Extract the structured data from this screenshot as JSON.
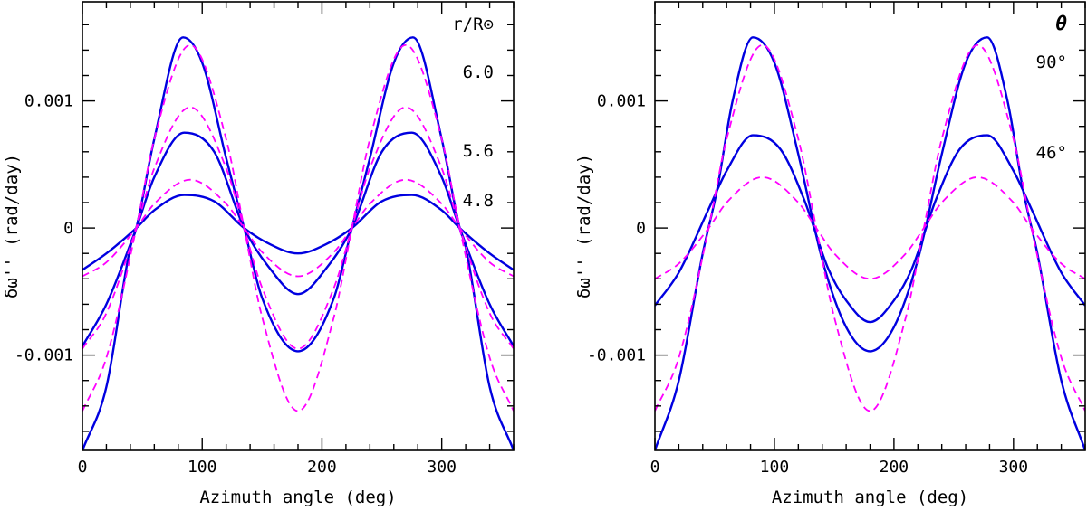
{
  "chart_data": [
    {
      "type": "line",
      "xlabel": "Azimuth angle  (deg)",
      "ylabel": "δω'' (rad/day)",
      "xlim": [
        0,
        360
      ],
      "ylim": [
        -0.00175,
        0.00178
      ],
      "xticks": [
        0,
        100,
        200,
        300
      ],
      "xtick_labels": [
        "0",
        "100",
        "200",
        "300"
      ],
      "yticks": [
        -0.001,
        0,
        0.001
      ],
      "ytick_labels": [
        "-0.001",
        "0",
        "0.001"
      ],
      "grid": false,
      "legend_title": "r/R⊙",
      "legend_entries": [
        "6.0",
        "5.6",
        "4.8"
      ],
      "colors": {
        "solid": "#0000e0",
        "dashed": "#ff00ff"
      },
      "series": [
        {
          "style": "solid",
          "x": [
            0,
            20,
            40,
            45,
            60,
            84,
            100,
            120,
            135,
            150,
            180,
            210,
            225,
            240,
            260,
            276,
            300,
            315,
            320,
            340,
            360
          ],
          "y": [
            -0.00175,
            -0.00125,
            -0.00015,
            0.0,
            0.0007,
            0.0015,
            0.0013,
            0.00055,
            0.0,
            -0.00055,
            -0.00097,
            -0.00055,
            0.0,
            0.00055,
            0.0013,
            0.0015,
            0.0007,
            0.0,
            -0.00015,
            -0.00125,
            -0.00175
          ]
        },
        {
          "style": "solid",
          "x": [
            0,
            20,
            45,
            60,
            85,
            110,
            135,
            155,
            180,
            205,
            225,
            250,
            275,
            300,
            315,
            340,
            360
          ],
          "y": [
            -0.00093,
            -0.0006,
            0.0,
            0.0004,
            0.00075,
            0.0006,
            0.0,
            -0.0003,
            -0.00052,
            -0.0003,
            0.0,
            0.0006,
            0.00075,
            0.0004,
            0.0,
            -0.0006,
            -0.00093
          ]
        },
        {
          "style": "solid",
          "x": [
            0,
            20,
            45,
            60,
            85,
            110,
            135,
            155,
            180,
            205,
            225,
            250,
            275,
            300,
            315,
            340,
            360
          ],
          "y": [
            -0.00033,
            -0.0002,
            0.0,
            0.00014,
            0.00026,
            0.00021,
            0.0,
            -0.00012,
            -0.0002,
            -0.00012,
            0.0,
            0.00021,
            0.00026,
            0.00014,
            0.0,
            -0.0002,
            -0.00033
          ]
        },
        {
          "style": "dashed",
          "x": [
            0,
            20,
            45,
            60,
            90,
            120,
            135,
            150,
            180,
            210,
            225,
            240,
            270,
            300,
            315,
            340,
            360
          ],
          "y": [
            -0.00144,
            -0.00102,
            0.0,
            0.0007,
            0.00144,
            0.0007,
            0.0,
            -0.0007,
            -0.00144,
            -0.0007,
            0.0,
            0.0007,
            0.00144,
            0.0007,
            0.0,
            -0.00102,
            -0.00144
          ]
        },
        {
          "style": "dashed",
          "x": [
            0,
            20,
            45,
            60,
            90,
            120,
            135,
            150,
            180,
            210,
            225,
            240,
            270,
            300,
            315,
            340,
            360
          ],
          "y": [
            -0.00095,
            -0.00067,
            0.0,
            0.00047,
            0.00095,
            0.00047,
            0.0,
            -0.00047,
            -0.00095,
            -0.00047,
            0.0,
            0.00047,
            0.00095,
            0.00047,
            0.0,
            -0.00067,
            -0.00095
          ]
        },
        {
          "style": "dashed",
          "x": [
            0,
            20,
            45,
            60,
            90,
            120,
            135,
            150,
            180,
            210,
            225,
            240,
            270,
            300,
            315,
            340,
            360
          ],
          "y": [
            -0.00038,
            -0.00027,
            0.0,
            0.00019,
            0.00038,
            0.00019,
            0.0,
            -0.00019,
            -0.00038,
            -0.00019,
            0.0,
            0.00019,
            0.00038,
            0.00019,
            0.0,
            -0.00027,
            -0.00038
          ]
        }
      ]
    },
    {
      "type": "line",
      "xlabel": "Azimuth angle  (deg)",
      "ylabel": "δω'' (rad/day)",
      "xlim": [
        0,
        360
      ],
      "ylim": [
        -0.00175,
        0.00178
      ],
      "xticks": [
        0,
        100,
        200,
        300
      ],
      "xtick_labels": [
        "0",
        "100",
        "200",
        "300"
      ],
      "yticks": [
        -0.001,
        0,
        0.001
      ],
      "ytick_labels": [
        "-0.001",
        "0",
        "0.001"
      ],
      "grid": false,
      "legend_title": "θ",
      "legend_entries": [
        "90°",
        "46°"
      ],
      "colors": {
        "solid": "#0000e0",
        "dashed": "#ff00ff"
      },
      "series": [
        {
          "style": "solid",
          "x": [
            0,
            20,
            40,
            52,
            65,
            82,
            100,
            120,
            140,
            160,
            180,
            200,
            220,
            240,
            260,
            278,
            295,
            308,
            320,
            340,
            360
          ],
          "y": [
            -0.00175,
            -0.0012,
            -0.0002,
            0.0003,
            0.001,
            0.0015,
            0.0013,
            0.00058,
            -0.00025,
            -0.00078,
            -0.00097,
            -0.00078,
            -0.00025,
            0.00058,
            0.0013,
            0.0015,
            0.001,
            0.0003,
            -0.0002,
            -0.0012,
            -0.00175
          ]
        },
        {
          "style": "solid",
          "x": [
            0,
            20,
            45,
            60,
            82,
            105,
            125,
            145,
            160,
            180,
            200,
            215,
            235,
            255,
            278,
            300,
            315,
            340,
            360
          ],
          "y": [
            -0.00061,
            -0.00035,
            0.00015,
            0.00045,
            0.00073,
            0.00062,
            0.00022,
            -0.00032,
            -0.00057,
            -0.00074,
            -0.00057,
            -0.00032,
            0.00022,
            0.00062,
            0.00073,
            0.00045,
            0.00015,
            -0.00035,
            -0.00061
          ]
        },
        {
          "style": "dashed",
          "x": [
            0,
            20,
            45,
            60,
            90,
            120,
            135,
            150,
            180,
            210,
            225,
            240,
            270,
            300,
            315,
            340,
            360
          ],
          "y": [
            -0.00144,
            -0.00102,
            0.0,
            0.0007,
            0.00144,
            0.0007,
            0.0,
            -0.0007,
            -0.00144,
            -0.0007,
            0.0,
            0.0007,
            0.00144,
            0.0007,
            0.0,
            -0.00102,
            -0.00144
          ]
        },
        {
          "style": "dashed",
          "x": [
            0,
            20,
            45,
            60,
            90,
            120,
            135,
            150,
            180,
            210,
            225,
            240,
            270,
            300,
            315,
            340,
            360
          ],
          "y": [
            -0.0004,
            -0.00028,
            0.0,
            0.0002,
            0.0004,
            0.0002,
            0.0,
            -0.0002,
            -0.0004,
            -0.0002,
            0.0,
            0.0002,
            0.0004,
            0.0002,
            0.0,
            -0.00028,
            -0.0004
          ]
        }
      ]
    }
  ]
}
